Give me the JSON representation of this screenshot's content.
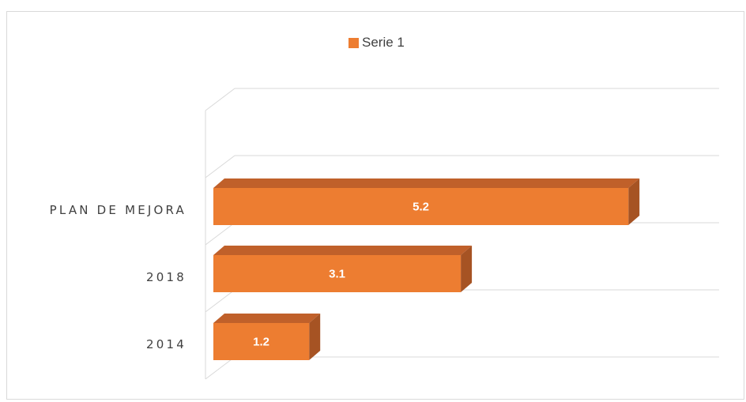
{
  "chart_data": {
    "type": "bar",
    "orientation": "horizontal",
    "three_d": true,
    "categories": [
      "2014",
      "2018",
      "PLAN DE MEJORA"
    ],
    "series": [
      {
        "name": "Serie 1",
        "values": [
          1.2,
          3.1,
          5.2
        ],
        "color": "#ED7D31"
      }
    ],
    "data_labels": [
      "1.2",
      "3.1",
      "5.2"
    ],
    "xlim": [
      0,
      6
    ],
    "grid": true,
    "legend_position": "top"
  },
  "colors": {
    "bar_front": "#ED7D31",
    "bar_top": "#C0602A",
    "bar_side": "#A65323",
    "grid": "#d9d9d9",
    "text": "#404040"
  }
}
